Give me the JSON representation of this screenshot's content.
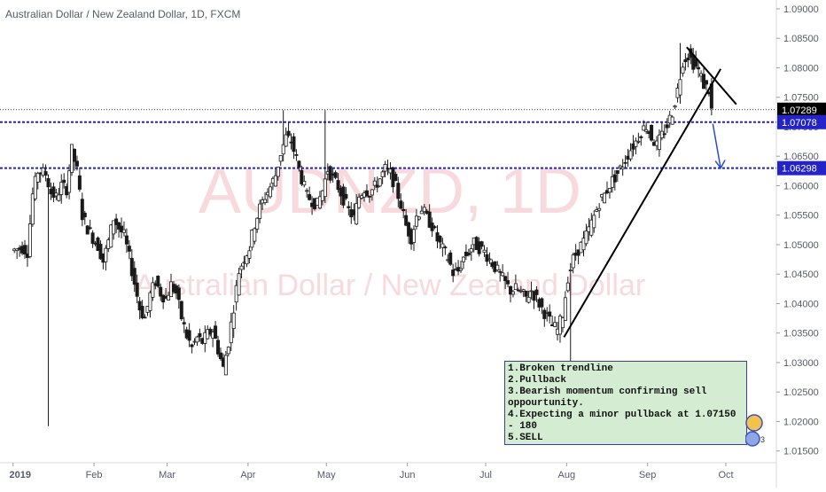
{
  "header": {
    "title": "Australian Dollar / New Zealand Dollar, 1D, FXCM"
  },
  "watermark": {
    "symbol": "AUDNZD, 1D",
    "name": "Australian Dollar / New Zealand Dollar"
  },
  "colors": {
    "up": "#ffffff",
    "down": "#1a1a1a",
    "level": "#2323c8",
    "trend": "#000000",
    "arrow": "#2a4bd6",
    "note_bg": "#d4ecd2",
    "axis_text": "#555b66",
    "watermark": "#f7d9de"
  },
  "chart_data": {
    "type": "candlestick",
    "title": "Australian Dollar / New Zealand Dollar, 1D, FXCM",
    "y_ticks": [
      "1.09000",
      "1.08500",
      "1.08000",
      "1.07500",
      "1.07000",
      "1.06500",
      "1.06000",
      "1.05500",
      "1.05000",
      "1.04500",
      "1.04000",
      "1.03500",
      "1.03000",
      "1.02500",
      "1.02000",
      "1.01500"
    ],
    "x_ticks": [
      {
        "label": "2019",
        "day": 0
      },
      {
        "label": "Feb",
        "day": 31
      },
      {
        "label": "Mar",
        "day": 59
      },
      {
        "label": "Apr",
        "day": 90
      },
      {
        "label": "May",
        "day": 120
      },
      {
        "label": "Jun",
        "day": 151
      },
      {
        "label": "Jul",
        "day": 181
      },
      {
        "label": "Aug",
        "day": 212
      },
      {
        "label": "Sep",
        "day": 243
      },
      {
        "label": "Oct",
        "day": 273
      }
    ],
    "ylim": [
      1.013,
      1.0915
    ],
    "xlim_days": [
      -5,
      292
    ],
    "last_price": "1.07289",
    "horizontal_levels": [
      {
        "label": "1.07078",
        "value": 1.07078
      },
      {
        "label": "1.06298",
        "value": 1.06298
      }
    ],
    "trendlines": [
      {
        "from": {
          "day": 211,
          "price": 1.0343
        },
        "to": {
          "day": 271,
          "price": 1.0798
        }
      },
      {
        "from": {
          "day": 258,
          "price": 1.0835
        },
        "to": {
          "day": 277,
          "price": 1.0738
        }
      }
    ],
    "arrow": {
      "from": {
        "day": 268,
        "price": 1.0705
      },
      "to": {
        "day": 271,
        "price": 1.063
      }
    },
    "price_path": [
      [
        0,
        1.049
      ],
      [
        4,
        1.0495
      ],
      [
        6,
        1.0488
      ],
      [
        8,
        1.0585
      ],
      [
        10,
        1.0625
      ],
      [
        13,
        1.062
      ],
      [
        15,
        1.0588
      ],
      [
        17,
        1.058
      ],
      [
        19,
        1.06
      ],
      [
        21,
        1.0595
      ],
      [
        23,
        1.066
      ],
      [
        25,
        1.0625
      ],
      [
        27,
        1.055
      ],
      [
        29,
        1.0528
      ],
      [
        31,
        1.0512
      ],
      [
        33,
        1.0498
      ],
      [
        35,
        1.0472
      ],
      [
        37,
        1.0505
      ],
      [
        39,
        1.0545
      ],
      [
        41,
        1.0528
      ],
      [
        43,
        1.0515
      ],
      [
        45,
        1.0478
      ],
      [
        47,
        1.0435
      ],
      [
        49,
        1.0392
      ],
      [
        51,
        1.0375
      ],
      [
        53,
        1.0415
      ],
      [
        55,
        1.0438
      ],
      [
        57,
        1.0418
      ],
      [
        59,
        1.0408
      ],
      [
        61,
        1.0432
      ],
      [
        63,
        1.0418
      ],
      [
        65,
        1.0376
      ],
      [
        67,
        1.0345
      ],
      [
        69,
        1.0325
      ],
      [
        71,
        1.0342
      ],
      [
        73,
        1.0335
      ],
      [
        75,
        1.0348
      ],
      [
        77,
        1.0355
      ],
      [
        79,
        1.0322
      ],
      [
        81,
        1.029
      ],
      [
        83,
        1.0335
      ],
      [
        85,
        1.0395
      ],
      [
        87,
        1.0455
      ],
      [
        89,
        1.0478
      ],
      [
        91,
        1.0495
      ],
      [
        93,
        1.0535
      ],
      [
        95,
        1.0562
      ],
      [
        97,
        1.0582
      ],
      [
        99,
        1.0598
      ],
      [
        101,
        1.0618
      ],
      [
        103,
        1.0655
      ],
      [
        105,
        1.0682
      ],
      [
        107,
        1.0675
      ],
      [
        109,
        1.0645
      ],
      [
        111,
        1.0612
      ],
      [
        113,
        1.0582
      ],
      [
        115,
        1.0575
      ],
      [
        117,
        1.0568
      ],
      [
        119,
        1.0592
      ],
      [
        121,
        1.0628
      ],
      [
        123,
        1.0612
      ],
      [
        125,
        1.0598
      ],
      [
        127,
        1.0578
      ],
      [
        129,
        1.0558
      ],
      [
        131,
        1.0545
      ],
      [
        133,
        1.0582
      ],
      [
        135,
        1.0595
      ],
      [
        137,
        1.0588
      ],
      [
        139,
        1.0598
      ],
      [
        141,
        1.0612
      ],
      [
        143,
        1.0628
      ],
      [
        145,
        1.062
      ],
      [
        147,
        1.0598
      ],
      [
        149,
        1.0568
      ],
      [
        151,
        1.0532
      ],
      [
        153,
        1.0512
      ],
      [
        155,
        1.0548
      ],
      [
        157,
        1.0562
      ],
      [
        159,
        1.0545
      ],
      [
        161,
        1.0532
      ],
      [
        163,
        1.0508
      ],
      [
        165,
        1.0492
      ],
      [
        167,
        1.0478
      ],
      [
        169,
        1.0452
      ],
      [
        171,
        1.0455
      ],
      [
        173,
        1.0478
      ],
      [
        175,
        1.0488
      ],
      [
        177,
        1.0502
      ],
      [
        179,
        1.0495
      ],
      [
        181,
        1.0488
      ],
      [
        183,
        1.0475
      ],
      [
        185,
        1.0462
      ],
      [
        187,
        1.0448
      ],
      [
        189,
        1.0435
      ],
      [
        191,
        1.0422
      ],
      [
        193,
        1.0425
      ],
      [
        195,
        1.0418
      ],
      [
        197,
        1.041
      ],
      [
        199,
        1.0422
      ],
      [
        201,
        1.0408
      ],
      [
        203,
        1.0392
      ],
      [
        205,
        1.0378
      ],
      [
        207,
        1.0362
      ],
      [
        209,
        1.0355
      ],
      [
        211,
        1.0382
      ],
      [
        213,
        1.0445
      ],
      [
        215,
        1.0475
      ],
      [
        217,
        1.0492
      ],
      [
        219,
        1.0505
      ],
      [
        221,
        1.0525
      ],
      [
        223,
        1.0548
      ],
      [
        225,
        1.0572
      ],
      [
        227,
        1.0585
      ],
      [
        229,
        1.0602
      ],
      [
        231,
        1.0615
      ],
      [
        233,
        1.0628
      ],
      [
        235,
        1.0645
      ],
      [
        237,
        1.0662
      ],
      [
        239,
        1.0675
      ],
      [
        241,
        1.0692
      ],
      [
        243,
        1.0702
      ],
      [
        245,
        1.0682
      ],
      [
        247,
        1.0668
      ],
      [
        249,
        1.0685
      ],
      [
        251,
        1.0702
      ],
      [
        253,
        1.0725
      ],
      [
        255,
        1.0762
      ],
      [
        257,
        1.0812
      ],
      [
        259,
        1.0822
      ],
      [
        261,
        1.0808
      ],
      [
        263,
        1.0795
      ],
      [
        265,
        1.0772
      ],
      [
        267,
        1.0762
      ],
      [
        268,
        1.0728
      ]
    ]
  },
  "note": {
    "lines": [
      "1.Broken trendline",
      "2.Pullback",
      "3.Bearish momentum confirming sell oppourtunity.",
      "4.Expecting a minor pullback at 1.07150 - 180",
      "5.SELL"
    ]
  },
  "badge": {
    "count": "3"
  }
}
